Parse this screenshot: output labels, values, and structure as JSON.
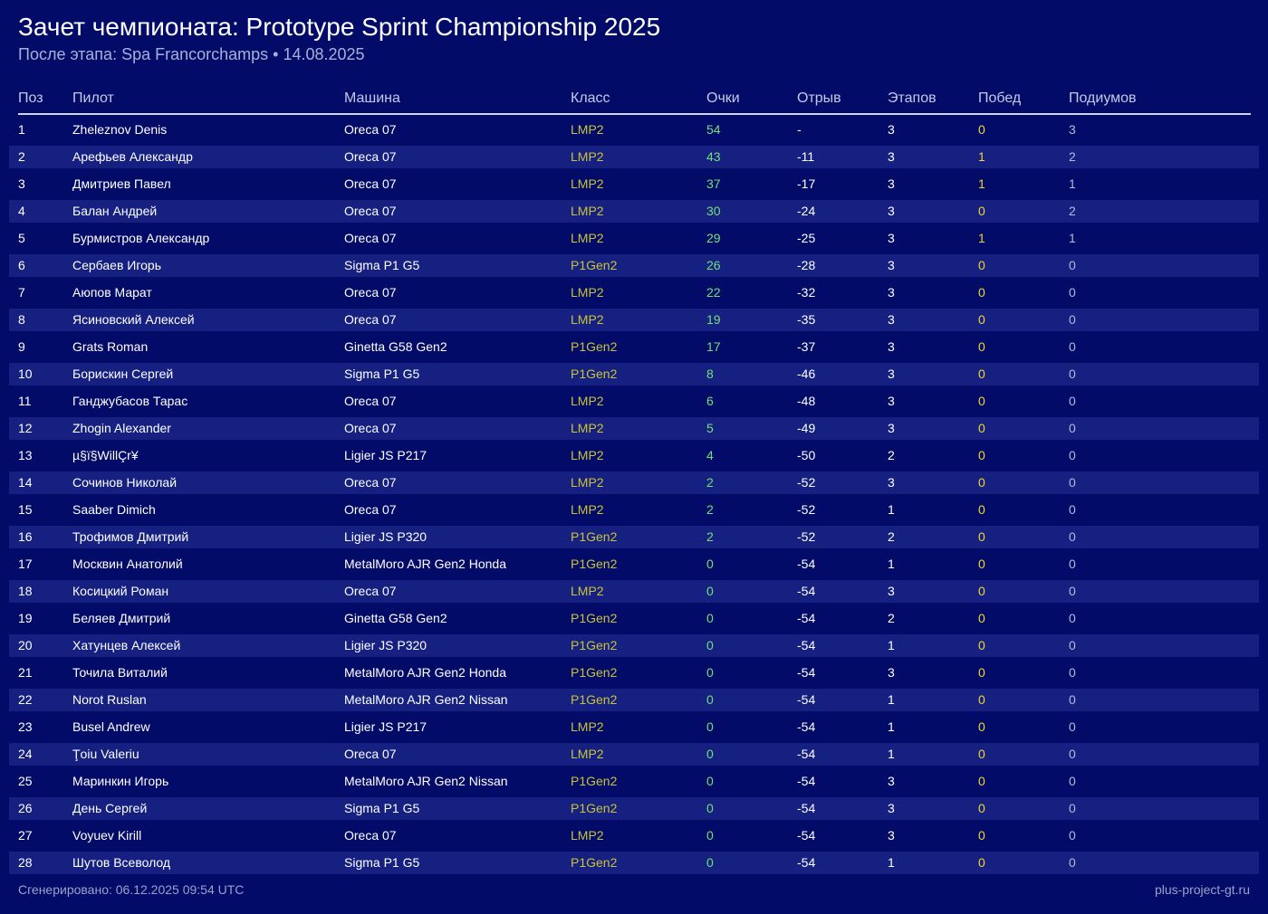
{
  "header": {
    "title": "Зачет чемпионата: Prototype Sprint Championship 2025",
    "subtitle": "После этапа: Spa Francorchamps • 14.08.2025"
  },
  "table": {
    "columns": [
      "Поз",
      "Пилот",
      "Машина",
      "Класс",
      "Очки",
      "Отрыв",
      "Этапов",
      "Побед",
      "Подиумов"
    ],
    "rows": [
      [
        1,
        "Zheleznov Denis",
        "Oreca 07",
        "LMP2",
        54,
        "-",
        3,
        0,
        3
      ],
      [
        2,
        "Арефьев Александр",
        "Oreca 07",
        "LMP2",
        43,
        -11,
        3,
        1,
        2
      ],
      [
        3,
        "Дмитриев Павел",
        "Oreca 07",
        "LMP2",
        37,
        -17,
        3,
        1,
        1
      ],
      [
        4,
        "Балан Андрей",
        "Oreca 07",
        "LMP2",
        30,
        -24,
        3,
        0,
        2
      ],
      [
        5,
        "Бурмистров Александр",
        "Oreca 07",
        "LMP2",
        29,
        -25,
        3,
        1,
        1
      ],
      [
        6,
        "Сербаев Игорь",
        "Sigma P1 G5",
        "P1Gen2",
        26,
        -28,
        3,
        0,
        0
      ],
      [
        7,
        "Аюпов Марат",
        "Oreca 07",
        "LMP2",
        22,
        -32,
        3,
        0,
        0
      ],
      [
        8,
        "Ясиновский Алексей",
        "Oreca 07",
        "LMP2",
        19,
        -35,
        3,
        0,
        0
      ],
      [
        9,
        "Grats Roman",
        "Ginetta G58 Gen2",
        "P1Gen2",
        17,
        -37,
        3,
        0,
        0
      ],
      [
        10,
        "Борискин Сергей",
        "Sigma P1 G5",
        "P1Gen2",
        8,
        -46,
        3,
        0,
        0
      ],
      [
        11,
        "Ганджубасов Тарас",
        "Oreca 07",
        "LMP2",
        6,
        -48,
        3,
        0,
        0
      ],
      [
        12,
        "Zhogin Alexander",
        "Oreca 07",
        "LMP2",
        5,
        -49,
        3,
        0,
        0
      ],
      [
        13,
        "µ§ï§WillÇr¥",
        "Ligier JS P217",
        "LMP2",
        4,
        -50,
        2,
        0,
        0
      ],
      [
        14,
        "Сочинов Николай",
        "Oreca 07",
        "LMP2",
        2,
        -52,
        3,
        0,
        0
      ],
      [
        15,
        "Saaber Dimich",
        "Oreca 07",
        "LMP2",
        2,
        -52,
        1,
        0,
        0
      ],
      [
        16,
        "Трофимов Дмитрий",
        "Ligier JS P320",
        "P1Gen2",
        2,
        -52,
        2,
        0,
        0
      ],
      [
        17,
        "Москвин Анатолий",
        "MetalMoro AJR Gen2 Honda",
        "P1Gen2",
        0,
        -54,
        1,
        0,
        0
      ],
      [
        18,
        "Косицкий Роман",
        "Oreca 07",
        "LMP2",
        0,
        -54,
        3,
        0,
        0
      ],
      [
        19,
        "Беляев Дмитрий",
        "Ginetta G58 Gen2",
        "P1Gen2",
        0,
        -54,
        2,
        0,
        0
      ],
      [
        20,
        "Хатунцев Алексей",
        "Ligier JS P320",
        "P1Gen2",
        0,
        -54,
        1,
        0,
        0
      ],
      [
        21,
        "Точила Виталий",
        "MetalMoro AJR Gen2 Honda",
        "P1Gen2",
        0,
        -54,
        3,
        0,
        0
      ],
      [
        22,
        "Norot Ruslan",
        "MetalMoro AJR Gen2 Nissan",
        "P1Gen2",
        0,
        -54,
        1,
        0,
        0
      ],
      [
        23,
        "Busel Andrew",
        "Ligier JS P217",
        "LMP2",
        0,
        -54,
        1,
        0,
        0
      ],
      [
        24,
        "Ţoiu Valeriu",
        "Oreca 07",
        "LMP2",
        0,
        -54,
        1,
        0,
        0
      ],
      [
        25,
        "Маринкин Игорь",
        "MetalMoro AJR Gen2 Nissan",
        "P1Gen2",
        0,
        -54,
        3,
        0,
        0
      ],
      [
        26,
        "День Сергей",
        "Sigma P1 G5",
        "P1Gen2",
        0,
        -54,
        3,
        0,
        0
      ],
      [
        27,
        "Voyuev Kirill",
        "Oreca 07",
        "LMP2",
        0,
        -54,
        3,
        0,
        0
      ],
      [
        28,
        "Шутов Всеволод",
        "Sigma P1 G5",
        "P1Gen2",
        0,
        -54,
        1,
        0,
        0
      ]
    ]
  },
  "footer": {
    "generated": "Сгенерировано: 06.12.2025 09:54 UTC",
    "site": "plus-project-gt.ru"
  }
}
